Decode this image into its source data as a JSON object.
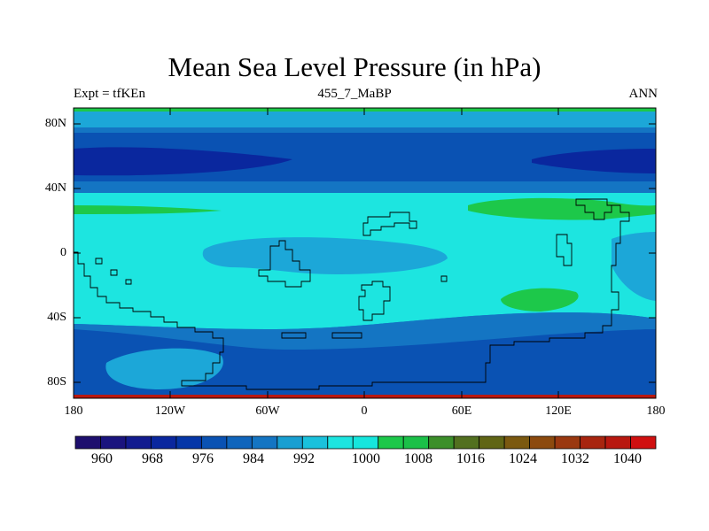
{
  "figure": {
    "title": "Mean Sea Level Pressure (in hPa)",
    "left_string": "Expt = tfKEn",
    "center_string": "455_7_MaBP",
    "right_string": "ANN"
  },
  "map": {
    "projection": "cylindrical equidistant",
    "lon_range": [
      -180,
      180
    ],
    "lat_range": [
      -90,
      90
    ],
    "lat_tick_labels": [
      "80N",
      "40N",
      "0",
      "40S",
      "80S"
    ],
    "lon_tick_labels": [
      "180",
      "120W",
      "60W",
      "0",
      "60E",
      "120E",
      "180"
    ],
    "field": "Mean Sea Level Pressure",
    "units": "hPa"
  },
  "colorbar": {
    "label_values": [
      "960",
      "968",
      "976",
      "984",
      "992",
      "1000",
      "1008",
      "1016",
      "1024",
      "1032",
      "1040"
    ],
    "colors": [
      "#1e0f6e",
      "#1a147e",
      "#121b8f",
      "#0a279e",
      "#0536a8",
      "#0a52b3",
      "#1065bc",
      "#1475c3",
      "#199fd1",
      "#1ac1dc",
      "#1de5e0",
      "#16e6dd",
      "#1dc84a",
      "#1bc048",
      "#3c8f2a",
      "#527020",
      "#606515",
      "#7b5910",
      "#8c4a0e",
      "#9a3810",
      "#a8250f",
      "#b81810",
      "#d01010"
    ]
  },
  "colors": {
    "deep_low": "#0a279e",
    "low": "#0a52b3",
    "mid_low": "#1475c3",
    "blue_light": "#1ca7d8",
    "cyan": "#1de5e0",
    "green": "#1dc84a",
    "red_edge": "#b81810"
  }
}
